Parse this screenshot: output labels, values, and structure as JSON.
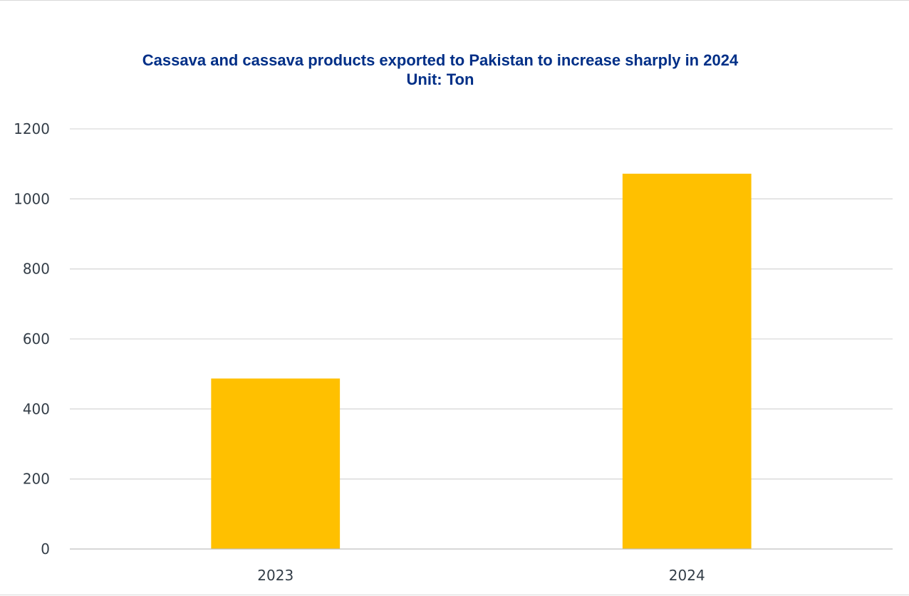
{
  "chart_data": {
    "type": "bar",
    "title": "Cassava and cassava products exported to Pakistan to increase sharply in 2024",
    "subtitle": "Unit: Ton",
    "categories": [
      "2023",
      "2024"
    ],
    "values": [
      487,
      1072
    ],
    "xlabel": "",
    "ylabel": "",
    "ylim": [
      0,
      1200
    ],
    "yticks": [
      0,
      200,
      400,
      600,
      800,
      1000,
      1200
    ],
    "grid": true,
    "legend": "none",
    "colors": {
      "bar": "#ffc000",
      "title": "#002f87",
      "tick_text": "#333d47",
      "grid": "#d9d9d9"
    }
  }
}
